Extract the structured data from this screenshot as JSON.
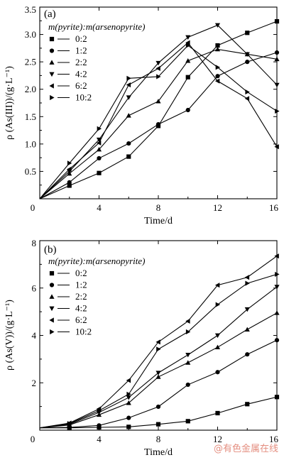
{
  "watermark": "@有色金属在线",
  "chart_data": [
    {
      "type": "line",
      "panel_label": "(a)",
      "xlabel": "Time/d",
      "ylabel": "ρ (As(III))/(g·L⁻¹)",
      "xlim": [
        0,
        16
      ],
      "ylim": [
        0,
        3.5
      ],
      "xticks": [
        0,
        4,
        8,
        12,
        16
      ],
      "yticks": [
        0.5,
        1.0,
        1.5,
        2.0,
        2.5,
        3.0,
        3.5
      ],
      "ytick_labels": [
        "0.5",
        "1.0",
        "1.5",
        "2.0",
        "2.5",
        "3.0",
        "3.5"
      ],
      "origin_label": "0",
      "legend_title": "m(pyrite):m(arsenopyrite)",
      "legend_position": "top-left",
      "x": [
        0,
        2,
        4,
        6,
        8,
        10,
        12,
        14,
        16
      ],
      "series": [
        {
          "name": "0:2",
          "marker": "square",
          "values": [
            0,
            0.24,
            0.47,
            0.77,
            1.33,
            2.22,
            2.8,
            3.03,
            3.24
          ]
        },
        {
          "name": "1:2",
          "marker": "circle",
          "values": [
            0,
            0.3,
            0.74,
            1.01,
            1.36,
            1.62,
            2.24,
            2.5,
            2.67
          ]
        },
        {
          "name": "2:2",
          "marker": "triangle-up",
          "values": [
            0,
            0.46,
            0.9,
            1.52,
            1.78,
            2.52,
            2.73,
            2.64,
            2.55
          ]
        },
        {
          "name": "4:2",
          "marker": "triangle-down",
          "values": [
            0,
            0.5,
            1.08,
            1.85,
            2.48,
            2.95,
            3.17,
            2.64,
            2.08
          ]
        },
        {
          "name": "6:2",
          "marker": "triangle-left",
          "values": [
            0,
            0.54,
            1.02,
            2.08,
            2.38,
            2.85,
            2.15,
            1.83,
            0.95
          ]
        },
        {
          "name": "10:2",
          "marker": "triangle-right",
          "values": [
            0,
            0.65,
            1.28,
            2.2,
            2.23,
            2.8,
            2.4,
            1.95,
            1.6
          ]
        }
      ]
    },
    {
      "type": "line",
      "panel_label": "(b)",
      "xlabel": "Time/d",
      "ylabel": "ρ (As(V))/(g·L⁻¹)",
      "xlim": [
        0,
        16
      ],
      "ylim": [
        0,
        8
      ],
      "xticks": [
        0,
        4,
        8,
        12,
        16
      ],
      "yticks": [
        2,
        4,
        6,
        8
      ],
      "ytick_labels": [
        "2",
        "4",
        "6",
        "8"
      ],
      "origin_label": "0",
      "legend_title": "m(pyrite):m(arsenopyrite)",
      "legend_position": "top-left",
      "x": [
        0,
        2,
        4,
        6,
        8,
        10,
        12,
        14,
        16
      ],
      "series": [
        {
          "name": "0:2",
          "marker": "square",
          "values": [
            0.1,
            0.1,
            0.12,
            0.14,
            0.25,
            0.38,
            0.72,
            1.1,
            1.4
          ]
        },
        {
          "name": "1:2",
          "marker": "circle",
          "values": [
            0.1,
            0.12,
            0.2,
            0.52,
            0.99,
            1.92,
            2.45,
            3.2,
            3.8
          ]
        },
        {
          "name": "2:2",
          "marker": "triangle-up",
          "values": [
            0.1,
            0.22,
            0.65,
            1.15,
            2.25,
            2.85,
            3.5,
            4.25,
            4.95
          ]
        },
        {
          "name": "4:2",
          "marker": "triangle-down",
          "values": [
            0.1,
            0.25,
            0.75,
            1.38,
            2.42,
            3.18,
            4.0,
            5.1,
            6.05
          ]
        },
        {
          "name": "6:2",
          "marker": "triangle-left",
          "values": [
            0.1,
            0.3,
            0.9,
            2.1,
            3.72,
            4.6,
            6.12,
            6.45,
            7.35
          ]
        },
        {
          "name": "10:2",
          "marker": "triangle-right",
          "values": [
            0.1,
            0.28,
            0.82,
            1.52,
            3.42,
            4.15,
            5.3,
            6.2,
            6.58
          ]
        }
      ]
    }
  ]
}
